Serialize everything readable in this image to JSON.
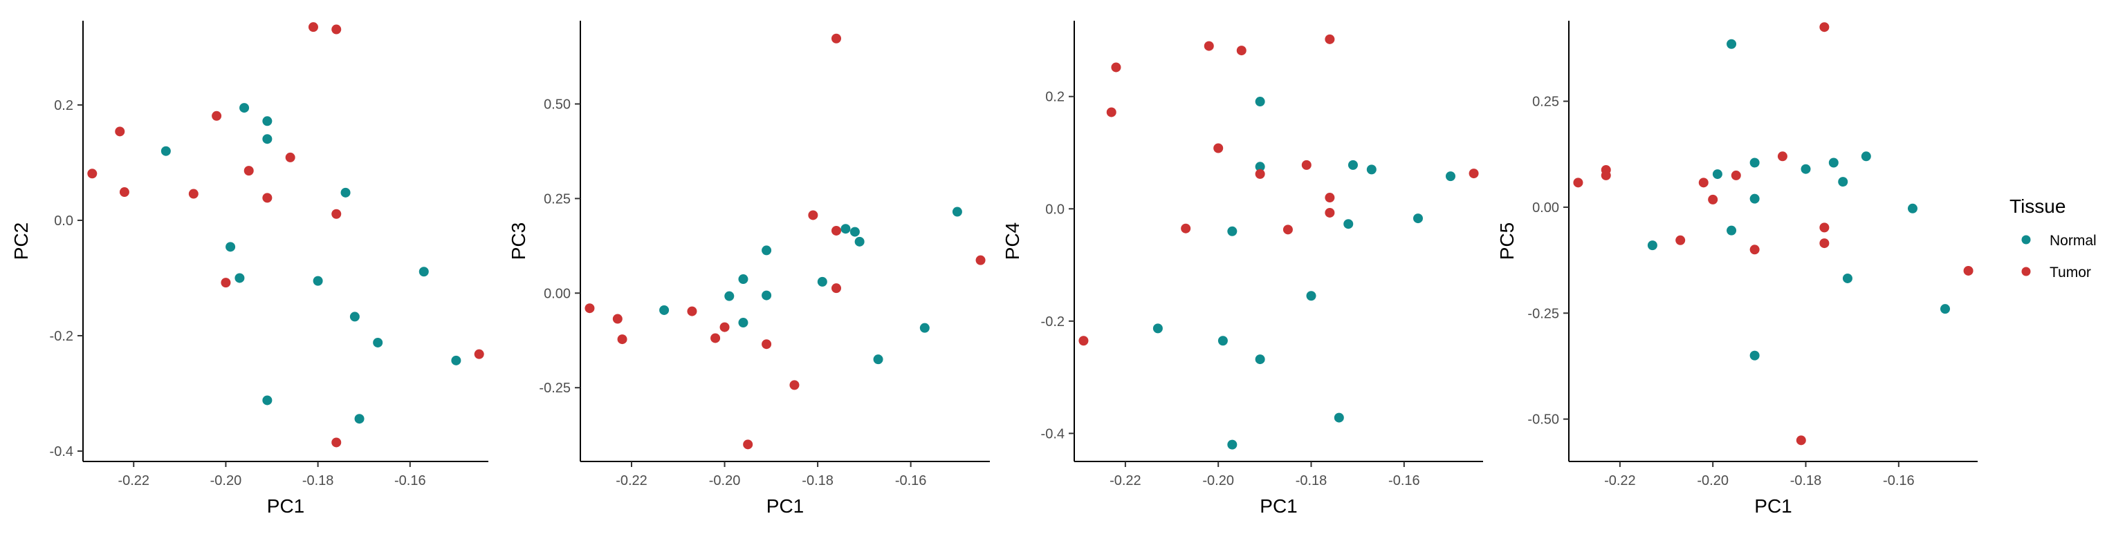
{
  "legend": {
    "title": "Tissue",
    "entries": [
      {
        "label": "Normal",
        "color": "#0f8b8d"
      },
      {
        "label": "Tumor",
        "color": "#cc3333"
      }
    ]
  },
  "chart_data": [
    {
      "type": "scatter",
      "xlabel": "PC1",
      "ylabel": "PC2",
      "xlim": [
        -0.231,
        -0.143
      ],
      "ylim": [
        -0.418,
        0.346
      ],
      "xticks": [
        -0.22,
        -0.2,
        -0.18,
        -0.16
      ],
      "yticks": [
        -0.4,
        -0.2,
        0.0,
        0.2
      ],
      "xtick_labels": [
        "-0.22",
        "-0.20",
        "-0.18",
        "-0.16"
      ],
      "ytick_labels": [
        "-0.4",
        "-0.2",
        "0.0",
        "0.2"
      ],
      "grid": false,
      "series": [
        {
          "name": "Normal",
          "color": "#0f8b8d",
          "points": [
            [
              -0.213,
              0.12
            ],
            [
              -0.196,
              0.195
            ],
            [
              -0.191,
              0.172
            ],
            [
              -0.191,
              0.141
            ],
            [
              -0.199,
              -0.046
            ],
            [
              -0.197,
              -0.1
            ],
            [
              -0.174,
              0.048
            ],
            [
              -0.18,
              -0.105
            ],
            [
              -0.172,
              -0.167
            ],
            [
              -0.167,
              -0.212
            ],
            [
              -0.157,
              -0.089
            ],
            [
              -0.15,
              -0.243
            ],
            [
              -0.171,
              -0.344
            ],
            [
              -0.191,
              -0.312
            ]
          ]
        },
        {
          "name": "Tumor",
          "color": "#cc3333",
          "points": [
            [
              -0.229,
              0.081
            ],
            [
              -0.223,
              0.154
            ],
            [
              -0.222,
              0.049
            ],
            [
              -0.207,
              0.046
            ],
            [
              -0.202,
              0.181
            ],
            [
              -0.2,
              -0.108
            ],
            [
              -0.195,
              0.086
            ],
            [
              -0.191,
              0.039
            ],
            [
              -0.186,
              0.109
            ],
            [
              -0.176,
              0.011
            ],
            [
              -0.181,
              0.335
            ],
            [
              -0.176,
              0.331
            ],
            [
              -0.145,
              -0.232
            ],
            [
              -0.176,
              -0.385
            ]
          ]
        }
      ]
    },
    {
      "type": "scatter",
      "xlabel": "PC1",
      "ylabel": "PC3",
      "xlim": [
        -0.231,
        -0.143
      ],
      "ylim": [
        -0.445,
        0.72
      ],
      "xticks": [
        -0.22,
        -0.2,
        -0.18,
        -0.16
      ],
      "yticks": [
        -0.25,
        0.0,
        0.25,
        0.5
      ],
      "xtick_labels": [
        "-0.22",
        "-0.20",
        "-0.18",
        "-0.16"
      ],
      "ytick_labels": [
        "-0.25",
        "0.00",
        "0.25",
        "0.50"
      ],
      "grid": false,
      "series": [
        {
          "name": "Normal",
          "color": "#0f8b8d",
          "points": [
            [
              -0.213,
              -0.045
            ],
            [
              -0.199,
              -0.008
            ],
            [
              -0.196,
              0.037
            ],
            [
              -0.191,
              0.113
            ],
            [
              -0.191,
              -0.006
            ],
            [
              -0.196,
              -0.078
            ],
            [
              -0.179,
              0.03
            ],
            [
              -0.174,
              0.17
            ],
            [
              -0.172,
              0.162
            ],
            [
              -0.171,
              0.136
            ],
            [
              -0.167,
              -0.175
            ],
            [
              -0.157,
              -0.092
            ],
            [
              -0.15,
              0.215
            ]
          ]
        },
        {
          "name": "Tumor",
          "color": "#cc3333",
          "points": [
            [
              -0.229,
              -0.04
            ],
            [
              -0.223,
              -0.068
            ],
            [
              -0.222,
              -0.122
            ],
            [
              -0.207,
              -0.048
            ],
            [
              -0.202,
              -0.119
            ],
            [
              -0.2,
              -0.09
            ],
            [
              -0.191,
              -0.135
            ],
            [
              -0.195,
              -0.4
            ],
            [
              -0.181,
              0.206
            ],
            [
              -0.185,
              -0.243
            ],
            [
              -0.176,
              0.165
            ],
            [
              -0.176,
              0.013
            ],
            [
              -0.176,
              0.673
            ],
            [
              -0.145,
              0.087
            ]
          ]
        }
      ]
    },
    {
      "type": "scatter",
      "xlabel": "PC1",
      "ylabel": "PC4",
      "xlim": [
        -0.231,
        -0.143
      ],
      "ylim": [
        -0.45,
        0.335
      ],
      "xticks": [
        -0.22,
        -0.2,
        -0.18,
        -0.16
      ],
      "yticks": [
        -0.4,
        -0.2,
        0.0,
        0.2
      ],
      "xtick_labels": [
        "-0.22",
        "-0.20",
        "-0.18",
        "-0.16"
      ],
      "ytick_labels": [
        "-0.4",
        "-0.2",
        "0.0",
        "0.2"
      ],
      "grid": false,
      "series": [
        {
          "name": "Normal",
          "color": "#0f8b8d",
          "points": [
            [
              -0.191,
              0.191
            ],
            [
              -0.191,
              0.075
            ],
            [
              -0.197,
              -0.04
            ],
            [
              -0.171,
              0.078
            ],
            [
              -0.167,
              0.07
            ],
            [
              -0.172,
              -0.027
            ],
            [
              -0.15,
              0.058
            ],
            [
              -0.157,
              -0.017
            ],
            [
              -0.18,
              -0.155
            ],
            [
              -0.213,
              -0.213
            ],
            [
              -0.199,
              -0.235
            ],
            [
              -0.191,
              -0.268
            ],
            [
              -0.174,
              -0.372
            ],
            [
              -0.197,
              -0.42
            ]
          ]
        },
        {
          "name": "Tumor",
          "color": "#cc3333",
          "points": [
            [
              -0.222,
              0.252
            ],
            [
              -0.223,
              0.172
            ],
            [
              -0.202,
              0.29
            ],
            [
              -0.195,
              0.282
            ],
            [
              -0.176,
              0.302
            ],
            [
              -0.2,
              0.108
            ],
            [
              -0.191,
              0.062
            ],
            [
              -0.181,
              0.078
            ],
            [
              -0.176,
              0.02
            ],
            [
              -0.176,
              -0.007
            ],
            [
              -0.207,
              -0.035
            ],
            [
              -0.185,
              -0.037
            ],
            [
              -0.145,
              0.063
            ],
            [
              -0.229,
              -0.235
            ]
          ]
        }
      ]
    },
    {
      "type": "scatter",
      "xlabel": "PC1",
      "ylabel": "PC5",
      "xlim": [
        -0.231,
        -0.143
      ],
      "ylim": [
        -0.6,
        0.44
      ],
      "xticks": [
        -0.22,
        -0.2,
        -0.18,
        -0.16
      ],
      "yticks": [
        -0.5,
        -0.25,
        0.0,
        0.25
      ],
      "xtick_labels": [
        "-0.22",
        "-0.20",
        "-0.18",
        "-0.16"
      ],
      "ytick_labels": [
        "-0.50",
        "-0.25",
        "0.00",
        "0.25"
      ],
      "grid": false,
      "series": [
        {
          "name": "Normal",
          "color": "#0f8b8d",
          "points": [
            [
              -0.196,
              0.385
            ],
            [
              -0.199,
              0.078
            ],
            [
              -0.191,
              0.105
            ],
            [
              -0.191,
              0.02
            ],
            [
              -0.18,
              0.09
            ],
            [
              -0.174,
              0.105
            ],
            [
              -0.172,
              0.06
            ],
            [
              -0.167,
              0.12
            ],
            [
              -0.157,
              -0.003
            ],
            [
              -0.213,
              -0.09
            ],
            [
              -0.196,
              -0.055
            ],
            [
              -0.171,
              -0.168
            ],
            [
              -0.15,
              -0.24
            ],
            [
              -0.191,
              -0.35
            ]
          ]
        },
        {
          "name": "Tumor",
          "color": "#cc3333",
          "points": [
            [
              -0.229,
              0.058
            ],
            [
              -0.223,
              0.088
            ],
            [
              -0.223,
              0.075
            ],
            [
              -0.202,
              0.058
            ],
            [
              -0.2,
              0.018
            ],
            [
              -0.195,
              0.075
            ],
            [
              -0.185,
              0.12
            ],
            [
              -0.176,
              0.425
            ],
            [
              -0.207,
              -0.078
            ],
            [
              -0.191,
              -0.1
            ],
            [
              -0.176,
              -0.048
            ],
            [
              -0.176,
              -0.085
            ],
            [
              -0.145,
              -0.15
            ],
            [
              -0.181,
              -0.55
            ]
          ]
        }
      ]
    }
  ]
}
